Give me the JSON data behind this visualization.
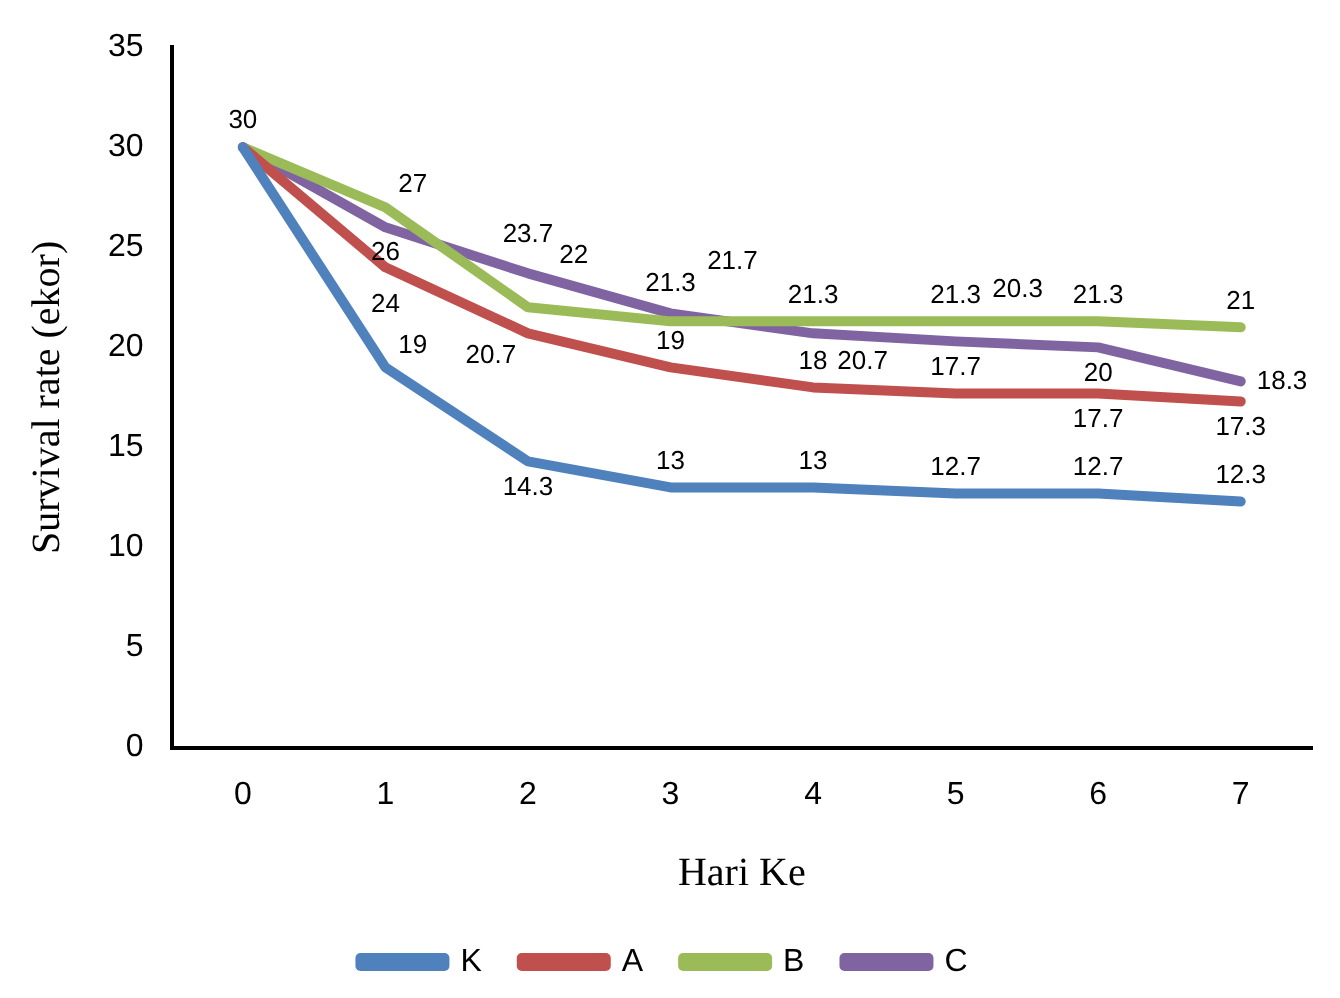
{
  "chart_data": {
    "type": "line",
    "xlabel": "Hari Ke",
    "ylabel": "Survival rate (ekor)",
    "categories": [
      "0",
      "1",
      "2",
      "3",
      "4",
      "5",
      "6",
      "7"
    ],
    "series": [
      {
        "name": "K",
        "color": "#4f81bd",
        "values": [
          30,
          19,
          14.3,
          13,
          13,
          12.7,
          12.7,
          12.3
        ],
        "value_labels": [
          "30",
          "19",
          "14.3",
          "13",
          "13",
          "12.7",
          "12.7",
          "12.3"
        ]
      },
      {
        "name": "A",
        "color": "#c0504d",
        "values": [
          30,
          24,
          20.7,
          19,
          18,
          17.7,
          17.7,
          17.3
        ],
        "value_labels": [
          null,
          "24",
          "20.7",
          "19",
          "18",
          "17.7",
          "17.7",
          "17.3"
        ]
      },
      {
        "name": "B",
        "color": "#9bbb59",
        "values": [
          30,
          27,
          22,
          21.3,
          21.3,
          21.3,
          21.3,
          21
        ],
        "value_labels": [
          null,
          "27",
          "22",
          "21.3",
          "21.3",
          "21.3",
          "21.3",
          "21"
        ]
      },
      {
        "name": "C",
        "color": "#8064a2",
        "values": [
          30,
          26,
          23.7,
          21.7,
          20.7,
          20.3,
          20,
          18.3
        ],
        "value_labels": [
          null,
          "26",
          "23.7",
          "21.7",
          "20.7",
          "20.3",
          "20",
          "18.3"
        ]
      }
    ],
    "ylim": [
      0,
      35
    ],
    "yticks": [
      0,
      5,
      10,
      15,
      20,
      25,
      30,
      35
    ],
    "legend": "bottom",
    "line_style": "solid"
  }
}
